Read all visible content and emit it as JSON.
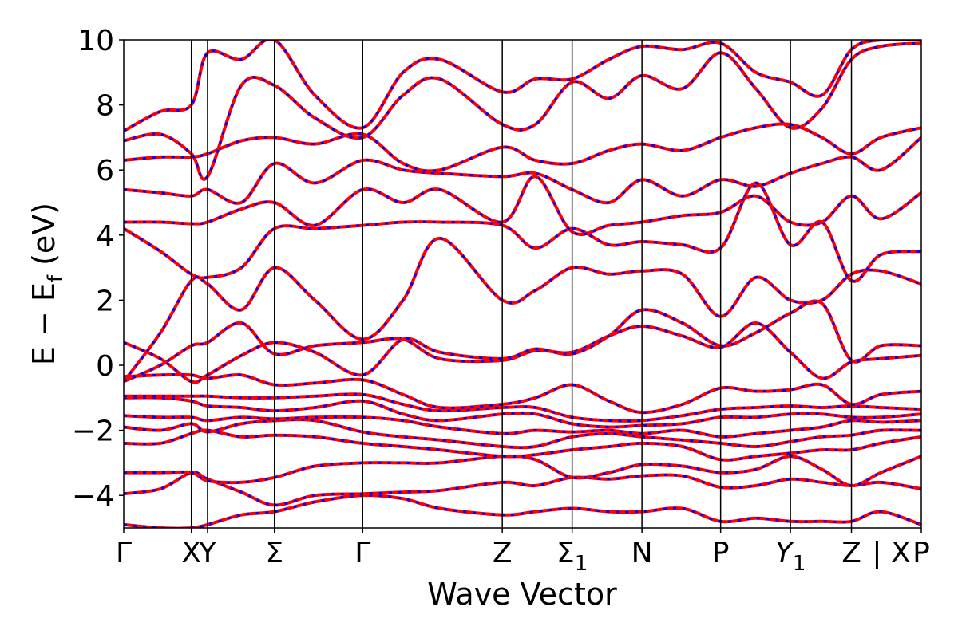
{
  "chart_data": {
    "type": "line",
    "title": "",
    "xlabel": "Wave Vector",
    "ylabel": "E − E",
    "ylabel_sub": "f",
    "ylabel_unit": " (eV)",
    "ylim": [
      -5,
      10
    ],
    "yticks": [
      -4,
      -2,
      0,
      2,
      4,
      6,
      8,
      10
    ],
    "ytick_labels": [
      "−4",
      "−2",
      "0",
      "2",
      "4",
      "6",
      "8",
      "10"
    ],
    "grid": false,
    "legend": "none",
    "colors": {
      "solid": "#ff0000",
      "dashed": "#0000ff",
      "kpath_lines": "#000000"
    },
    "kpath": {
      "positions": [
        0,
        0.92,
        1.14,
        2.05,
        3.25,
        5.15,
        6.1,
        7.05,
        8.12,
        9.07,
        9.9,
        10.85
      ],
      "labels": [
        "Γ",
        "X",
        "Y",
        "Σ",
        "Γ",
        "Z",
        "Σ",
        "N",
        "P",
        "Y",
        "Z",
        "P"
      ],
      "label_subs": [
        "",
        "",
        "",
        "",
        "",
        "",
        "1",
        "",
        "",
        "1",
        "",
        ""
      ],
      "label_italic": [
        false,
        false,
        false,
        false,
        false,
        false,
        false,
        false,
        false,
        true,
        false,
        false
      ],
      "break_label": "| X",
      "xlim": [
        0,
        10.85
      ]
    },
    "series": [
      {
        "x": [
          0,
          0.5,
          0.92,
          1.14,
          1.6,
          2.05,
          2.6,
          3.25,
          3.8,
          4.3,
          5.15,
          5.6,
          6.1,
          6.6,
          7.05,
          7.6,
          8.12,
          8.6,
          9.07,
          9.5,
          9.9,
          10.3,
          10.85
        ],
        "y": [
          -4.9,
          -5.0,
          -5.0,
          -4.9,
          -4.6,
          -4.5,
          -4.2,
          -4.0,
          -4.1,
          -4.4,
          -4.6,
          -4.5,
          -4.4,
          -4.5,
          -4.5,
          -4.4,
          -4.8,
          -4.7,
          -4.8,
          -4.8,
          -4.8,
          -4.5,
          -4.9
        ]
      },
      {
        "x": [
          0,
          0.5,
          0.92,
          1.14,
          1.6,
          2.05,
          2.6,
          3.25,
          3.8,
          4.3,
          5.15,
          5.6,
          6.1,
          6.6,
          7.05,
          7.6,
          8.12,
          8.6,
          9.07,
          9.5,
          9.9,
          10.3,
          10.85
        ],
        "y": [
          -3.95,
          -3.8,
          -3.3,
          -3.5,
          -3.9,
          -4.3,
          -4.0,
          -3.95,
          -3.9,
          -3.85,
          -3.6,
          -3.7,
          -3.45,
          -3.5,
          -3.4,
          -3.4,
          -3.75,
          -3.7,
          -3.5,
          -3.6,
          -3.7,
          -3.6,
          -3.8
        ]
      },
      {
        "x": [
          0,
          0.5,
          0.92,
          1.14,
          1.6,
          2.05,
          2.6,
          3.25,
          3.8,
          4.3,
          5.15,
          5.6,
          6.1,
          6.6,
          7.05,
          7.6,
          8.12,
          8.6,
          9.07,
          9.5,
          9.9,
          10.3,
          10.85
        ],
        "y": [
          -3.3,
          -3.3,
          -3.3,
          -3.55,
          -3.6,
          -3.45,
          -3.1,
          -3.0,
          -3.0,
          -3.0,
          -2.8,
          -2.9,
          -3.45,
          -3.3,
          -3.05,
          -3.1,
          -3.3,
          -3.2,
          -2.8,
          -3.2,
          -3.7,
          -3.3,
          -2.8
        ]
      },
      {
        "x": [
          0,
          0.5,
          0.92,
          1.14,
          1.6,
          2.05,
          2.6,
          3.25,
          3.8,
          4.3,
          5.15,
          5.6,
          6.1,
          6.6,
          7.05,
          7.6,
          8.12,
          8.6,
          9.07,
          9.5,
          9.9,
          10.3,
          10.85
        ],
        "y": [
          -2.4,
          -2.4,
          -2.1,
          -2.0,
          -2.2,
          -2.15,
          -2.2,
          -2.4,
          -2.5,
          -2.6,
          -2.8,
          -2.75,
          -2.6,
          -2.5,
          -2.4,
          -2.5,
          -2.9,
          -2.8,
          -2.7,
          -2.6,
          -2.6,
          -2.4,
          -2.2
        ]
      },
      {
        "x": [
          0,
          0.5,
          0.92,
          1.14,
          1.6,
          2.05,
          2.6,
          3.25,
          3.8,
          4.3,
          5.15,
          5.6,
          6.1,
          6.6,
          7.05,
          7.6,
          8.12,
          8.6,
          9.07,
          9.5,
          9.9,
          10.3,
          10.85
        ],
        "y": [
          -1.9,
          -2.0,
          -1.8,
          -2.05,
          -1.8,
          -1.7,
          -1.7,
          -2.05,
          -2.2,
          -2.3,
          -2.5,
          -2.5,
          -2.2,
          -2.1,
          -2.2,
          -2.3,
          -2.4,
          -2.5,
          -2.35,
          -2.2,
          -2.15,
          -2.0,
          -2.0
        ]
      },
      {
        "x": [
          0,
          0.5,
          0.92,
          1.14,
          1.6,
          2.05,
          2.6,
          3.25,
          3.8,
          4.3,
          5.15,
          5.6,
          6.1,
          6.6,
          7.05,
          7.6,
          8.12,
          8.6,
          9.07,
          9.5,
          9.9,
          10.3,
          10.85
        ],
        "y": [
          -1.55,
          -1.6,
          -1.6,
          -1.7,
          -1.6,
          -1.65,
          -1.6,
          -1.6,
          -1.7,
          -1.9,
          -2.1,
          -2.0,
          -2.05,
          -2.0,
          -2.1,
          -2.0,
          -2.2,
          -2.1,
          -2.0,
          -1.9,
          -1.7,
          -1.75,
          -1.7
        ]
      },
      {
        "x": [
          0,
          0.5,
          0.92,
          1.14,
          1.6,
          2.05,
          2.6,
          3.25,
          3.8,
          4.3,
          5.15,
          5.6,
          6.1,
          6.6,
          7.05,
          7.6,
          8.12,
          8.6,
          9.07,
          9.5,
          9.9,
          10.3,
          10.85
        ],
        "y": [
          -1.0,
          -1.0,
          -1.1,
          -1.25,
          -1.3,
          -1.4,
          -1.3,
          -1.1,
          -1.5,
          -1.7,
          -1.5,
          -1.5,
          -1.8,
          -1.9,
          -1.85,
          -1.8,
          -1.6,
          -1.6,
          -1.5,
          -1.5,
          -1.6,
          -1.6,
          -1.5
        ]
      },
      {
        "x": [
          0,
          0.5,
          0.92,
          1.14,
          1.6,
          2.05,
          2.6,
          3.25,
          3.8,
          4.3,
          5.15,
          5.6,
          6.1,
          6.6,
          7.05,
          7.6,
          8.12,
          8.6,
          9.07,
          9.5,
          9.9,
          10.3,
          10.85
        ],
        "y": [
          -0.95,
          -0.95,
          -0.95,
          -0.95,
          -1.0,
          -1.0,
          -0.95,
          -0.9,
          -1.2,
          -1.4,
          -1.3,
          -1.3,
          -1.6,
          -1.7,
          -1.7,
          -1.55,
          -1.35,
          -1.3,
          -1.25,
          -1.3,
          -1.25,
          -1.3,
          -1.35
        ]
      },
      {
        "x": [
          0,
          0.5,
          0.92,
          1.14,
          1.6,
          2.05,
          2.6,
          3.25,
          3.8,
          4.3,
          5.15,
          5.6,
          6.1,
          6.6,
          7.05,
          7.6,
          8.12,
          8.6,
          9.07,
          9.5,
          9.9,
          10.3,
          10.85
        ],
        "y": [
          -0.35,
          -0.3,
          -0.3,
          -0.4,
          -0.3,
          -0.6,
          -0.55,
          -0.45,
          -0.9,
          -1.3,
          -1.2,
          -1.0,
          -0.6,
          -1.1,
          -1.45,
          -1.2,
          -0.7,
          -0.8,
          -0.75,
          -0.6,
          -1.2,
          -0.9,
          -0.8
        ]
      },
      {
        "x": [
          0,
          0.5,
          0.92,
          1.14,
          1.6,
          2.05,
          2.6,
          3.25,
          3.8,
          4.3,
          5.15,
          5.6,
          6.1,
          6.6,
          7.05,
          7.6,
          8.12,
          8.6,
          9.07,
          9.5,
          9.9,
          10.3,
          10.85
        ],
        "y": [
          -0.5,
          0.0,
          0.6,
          0.7,
          1.3,
          0.35,
          0.6,
          0.7,
          0.8,
          0.2,
          0.15,
          0.45,
          0.4,
          0.9,
          1.2,
          0.9,
          0.55,
          1.3,
          0.4,
          -0.4,
          0.1,
          0.2,
          0.3
        ]
      },
      {
        "x": [
          0,
          0.5,
          0.92,
          1.14,
          1.6,
          2.05,
          2.6,
          3.25,
          3.8,
          4.3,
          5.15,
          5.6,
          6.1,
          6.6,
          7.05,
          7.6,
          8.12,
          8.6,
          9.07,
          9.5,
          9.9,
          10.3,
          10.85
        ],
        "y": [
          0.7,
          0.2,
          -0.5,
          -0.3,
          0.3,
          0.7,
          0.4,
          -0.3,
          0.8,
          0.4,
          0.2,
          0.5,
          0.35,
          0.9,
          1.7,
          1.3,
          0.6,
          1.0,
          1.6,
          1.9,
          0.15,
          0.6,
          0.6
        ]
      },
      {
        "x": [
          0,
          0.5,
          0.92,
          1.14,
          1.6,
          2.05,
          2.6,
          3.25,
          3.8,
          4.3,
          5.15,
          5.6,
          6.1,
          6.6,
          7.05,
          7.6,
          8.12,
          8.6,
          9.07,
          9.5,
          9.9,
          10.3,
          10.85
        ],
        "y": [
          -0.5,
          1.0,
          2.6,
          2.5,
          1.7,
          3.0,
          2.0,
          0.8,
          2.0,
          3.9,
          2.0,
          2.3,
          3.0,
          2.8,
          2.9,
          2.8,
          1.5,
          2.7,
          2.0,
          2.0,
          2.8,
          2.9,
          2.5
        ]
      },
      {
        "x": [
          0,
          0.5,
          0.92,
          1.14,
          1.6,
          2.05,
          2.6,
          3.25,
          3.8,
          4.3,
          5.15,
          5.6,
          6.1,
          6.6,
          7.05,
          7.6,
          8.12,
          8.6,
          9.07,
          9.5,
          9.9,
          10.3,
          10.85
        ],
        "y": [
          4.2,
          3.5,
          2.8,
          2.7,
          3.0,
          4.2,
          4.2,
          4.3,
          4.4,
          4.4,
          4.3,
          3.6,
          4.2,
          3.7,
          3.8,
          3.7,
          3.6,
          5.6,
          3.7,
          4.4,
          2.6,
          3.4,
          3.5
        ]
      },
      {
        "x": [
          0,
          0.5,
          0.92,
          1.14,
          1.6,
          2.05,
          2.6,
          3.25,
          3.8,
          4.3,
          5.15,
          5.6,
          6.1,
          6.6,
          7.05,
          7.6,
          8.12,
          8.6,
          9.07,
          9.5,
          9.9,
          10.3,
          10.85
        ],
        "y": [
          4.4,
          4.4,
          4.35,
          4.4,
          4.8,
          5.0,
          4.3,
          5.4,
          5.0,
          5.4,
          4.4,
          5.8,
          4.1,
          4.3,
          4.4,
          4.6,
          4.7,
          5.2,
          4.4,
          4.4,
          5.2,
          4.5,
          5.3
        ]
      },
      {
        "x": [
          0,
          0.5,
          0.92,
          1.14,
          1.6,
          2.05,
          2.6,
          3.25,
          3.8,
          4.3,
          5.15,
          5.6,
          6.1,
          6.6,
          7.05,
          7.6,
          8.12,
          8.6,
          9.07,
          9.5,
          9.9,
          10.3,
          10.85
        ],
        "y": [
          5.4,
          5.3,
          5.2,
          5.4,
          5.0,
          6.2,
          5.6,
          6.3,
          6.0,
          5.9,
          5.8,
          5.9,
          5.4,
          5.0,
          5.7,
          5.2,
          5.7,
          5.5,
          5.9,
          6.2,
          6.4,
          6.0,
          7.0
        ]
      },
      {
        "x": [
          0,
          0.5,
          0.92,
          1.14,
          1.6,
          2.05,
          2.6,
          3.25,
          3.8,
          4.3,
          5.15,
          5.6,
          6.1,
          6.6,
          7.05,
          7.6,
          8.12,
          8.6,
          9.07,
          9.5,
          9.9,
          10.3,
          10.85
        ],
        "y": [
          6.3,
          6.4,
          6.4,
          6.5,
          6.9,
          7.0,
          6.8,
          7.1,
          6.2,
          6.0,
          6.7,
          6.3,
          6.2,
          6.6,
          6.8,
          6.6,
          7.0,
          7.3,
          7.4,
          7.0,
          6.5,
          7.0,
          7.3
        ]
      },
      {
        "x": [
          0,
          0.5,
          0.92,
          1.14,
          1.6,
          2.05,
          2.6,
          3.25,
          3.8,
          4.3,
          5.15,
          5.6,
          6.1,
          6.6,
          7.05,
          7.6,
          8.12,
          8.6,
          9.07,
          9.5,
          9.9,
          10.3,
          10.85
        ],
        "y": [
          6.9,
          7.1,
          6.5,
          5.8,
          8.6,
          8.6,
          7.6,
          7.0,
          8.3,
          8.8,
          7.4,
          7.4,
          8.7,
          8.2,
          8.9,
          8.5,
          9.6,
          8.5,
          7.3,
          7.9,
          9.4,
          9.8,
          9.9
        ]
      },
      {
        "x": [
          0,
          0.5,
          0.92,
          1.14,
          1.6,
          2.05,
          2.6,
          3.25,
          3.8,
          4.3,
          5.15,
          5.6,
          6.1,
          6.6,
          7.05,
          7.6,
          8.12,
          8.6,
          9.07,
          9.5,
          9.9,
          10.3,
          10.85
        ],
        "y": [
          7.2,
          7.8,
          8.0,
          9.6,
          9.4,
          10.0,
          8.3,
          7.3,
          9.0,
          9.4,
          8.4,
          8.8,
          8.8,
          9.4,
          9.8,
          9.7,
          9.9,
          9.0,
          8.7,
          8.3,
          9.7,
          10.0,
          10.0
        ]
      }
    ]
  }
}
